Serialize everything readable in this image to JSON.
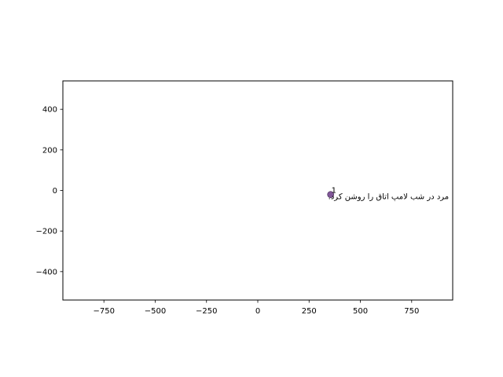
{
  "chart_data": {
    "type": "scatter",
    "title": "",
    "xlabel": "",
    "ylabel": "",
    "xlim": [
      -950,
      950
    ],
    "ylim": [
      -540,
      540
    ],
    "xticks": [
      -750,
      -500,
      -250,
      0,
      250,
      500,
      750
    ],
    "yticks": [
      -400,
      -200,
      0,
      200,
      400
    ],
    "grid": false,
    "series": [
      {
        "points": [
          {
            "x": 355,
            "y": -20,
            "label": "1",
            "text": "مرد در شب لامپ اتاق را روشن کرد."
          }
        ]
      }
    ],
    "colors": {
      "point": "#6b3a86",
      "axes": "#000000"
    }
  }
}
